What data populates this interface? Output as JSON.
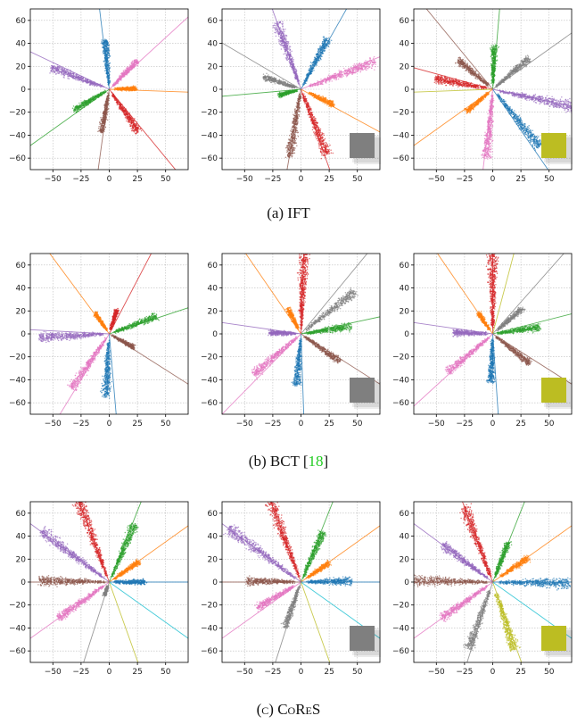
{
  "captions": {
    "a": "(a) IFT",
    "b_prefix": "(b) BCT [",
    "b_ref": "18",
    "b_suffix": "]",
    "c": "(c) CoReS"
  },
  "colors": {
    "blue": "#1f77b4",
    "orange": "#ff7f0e",
    "green": "#2ca02c",
    "red": "#d62728",
    "purple": "#9467bd",
    "brown": "#8c564b",
    "pink": "#e377c2",
    "gray": "#7f7f7f",
    "olive": "#bcbd22",
    "cyan": "#17becf"
  },
  "chart_data": [
    {
      "type": "scatter",
      "row": "a",
      "col": 1,
      "xlim": [
        -70,
        70
      ],
      "ylim": [
        -70,
        70
      ],
      "grid": true,
      "legend_square": null,
      "xticks": [
        -50,
        -25,
        0,
        25,
        50
      ],
      "yticks": [
        -60,
        -40,
        -20,
        0,
        20,
        40,
        60
      ],
      "lines": [
        {
          "c": "blue",
          "a": 97
        },
        {
          "c": "pink",
          "a": 42
        },
        {
          "c": "orange",
          "a": -2
        },
        {
          "c": "red",
          "a": -50
        },
        {
          "c": "brown",
          "a": -98
        },
        {
          "c": "green",
          "a": -145
        },
        {
          "c": "purple",
          "a": 155
        }
      ],
      "clusters": [
        {
          "c": "blue",
          "a": 95,
          "r0": 4,
          "r1": 43
        },
        {
          "c": "pink",
          "a": 45,
          "r0": 4,
          "r1": 35
        },
        {
          "c": "orange",
          "a": 2,
          "r0": 6,
          "r1": 24
        },
        {
          "c": "red",
          "a": -55,
          "r0": 4,
          "r1": 45
        },
        {
          "c": "brown",
          "a": -100,
          "r0": 4,
          "r1": 38
        },
        {
          "c": "green",
          "a": -150,
          "r0": 4,
          "r1": 36
        },
        {
          "c": "purple",
          "a": 160,
          "r0": 6,
          "r1": 55
        }
      ]
    },
    {
      "type": "scatter",
      "row": "a",
      "col": 2,
      "xlim": [
        -70,
        70
      ],
      "ylim": [
        -70,
        70
      ],
      "grid": true,
      "legend_square": "gray",
      "xticks": [
        -50,
        -25,
        0,
        25,
        50
      ],
      "yticks": [
        -60,
        -40,
        -20,
        0,
        20,
        40,
        60
      ],
      "lines": [
        {
          "c": "blue",
          "a": 60
        },
        {
          "c": "purple",
          "a": 110
        },
        {
          "c": "pink",
          "a": 22
        },
        {
          "c": "gray",
          "a": 150
        },
        {
          "c": "green",
          "a": -175
        },
        {
          "c": "orange",
          "a": -28
        },
        {
          "c": "red",
          "a": -70
        },
        {
          "c": "brown",
          "a": -100
        }
      ],
      "clusters": [
        {
          "c": "blue",
          "a": 62,
          "r0": 4,
          "r1": 50
        },
        {
          "c": "purple",
          "a": 110,
          "r0": 5,
          "r1": 62
        },
        {
          "c": "pink",
          "a": 20,
          "r0": 8,
          "r1": 70
        },
        {
          "c": "gray",
          "a": 162,
          "r0": 5,
          "r1": 35
        },
        {
          "c": "green",
          "a": -165,
          "r0": 4,
          "r1": 20
        },
        {
          "c": "orange",
          "a": -25,
          "r0": 8,
          "r1": 32
        },
        {
          "c": "red",
          "a": -68,
          "r0": 4,
          "r1": 62
        },
        {
          "c": "brown",
          "a": -100,
          "r0": 4,
          "r1": 60
        }
      ]
    },
    {
      "type": "scatter",
      "row": "a",
      "col": 3,
      "xlim": [
        -70,
        70
      ],
      "ylim": [
        -70,
        70
      ],
      "grid": true,
      "legend_square": "olive",
      "xticks": [
        -50,
        -25,
        0,
        25,
        50
      ],
      "yticks": [
        -60,
        -40,
        -20,
        0,
        20,
        40,
        60
      ],
      "lines": [
        {
          "c": "green",
          "a": 85
        },
        {
          "c": "gray",
          "a": 35
        },
        {
          "c": "brown",
          "a": 130
        },
        {
          "c": "red",
          "a": 165
        },
        {
          "c": "olive",
          "a": -178
        },
        {
          "c": "orange",
          "a": -145
        },
        {
          "c": "pink",
          "a": -97
        },
        {
          "c": "blue",
          "a": -55
        },
        {
          "c": "purple",
          "a": -12
        }
      ],
      "clusters": [
        {
          "c": "green",
          "a": 88,
          "r0": 4,
          "r1": 38
        },
        {
          "c": "gray",
          "a": 40,
          "r0": 4,
          "r1": 42
        },
        {
          "c": "brown",
          "a": 140,
          "r0": 5,
          "r1": 40
        },
        {
          "c": "red",
          "a": 170,
          "r0": 6,
          "r1": 52
        },
        {
          "c": "orange",
          "a": -140,
          "r0": 5,
          "r1": 30
        },
        {
          "c": "pink",
          "a": -95,
          "r0": 5,
          "r1": 60
        },
        {
          "c": "blue",
          "a": -50,
          "r0": 6,
          "r1": 65
        },
        {
          "c": "purple",
          "a": -12,
          "r0": 6,
          "r1": 75
        }
      ]
    },
    {
      "type": "scatter",
      "row": "b",
      "col": 1,
      "xlim": [
        -70,
        70
      ],
      "ylim": [
        -70,
        70
      ],
      "grid": true,
      "legend_square": null,
      "xticks": [
        -50,
        -25,
        0,
        25,
        50
      ],
      "yticks": [
        -60,
        -40,
        -20,
        0,
        20,
        40,
        60
      ],
      "lines": [
        {
          "c": "orange",
          "a": 127
        },
        {
          "c": "red",
          "a": 62
        },
        {
          "c": "green",
          "a": 18
        },
        {
          "c": "purple",
          "a": 177
        },
        {
          "c": "brown",
          "a": -32
        },
        {
          "c": "blue",
          "a": -85
        },
        {
          "c": "pink",
          "a": -122
        }
      ],
      "clusters": [
        {
          "c": "orange",
          "a": 125,
          "r0": 4,
          "r1": 22
        },
        {
          "c": "red",
          "a": 72,
          "r0": 4,
          "r1": 22
        },
        {
          "c": "green",
          "a": 20,
          "r0": 4,
          "r1": 45
        },
        {
          "c": "purple",
          "a": -177,
          "r0": 5,
          "r1": 62
        },
        {
          "c": "brown",
          "a": -28,
          "r0": 4,
          "r1": 25
        },
        {
          "c": "blue",
          "a": -93,
          "r0": 6,
          "r1": 55
        },
        {
          "c": "pink",
          "a": -125,
          "r0": 5,
          "r1": 58
        }
      ]
    },
    {
      "type": "scatter",
      "row": "b",
      "col": 2,
      "xlim": [
        -70,
        70
      ],
      "ylim": [
        -70,
        70
      ],
      "grid": true,
      "legend_square": "gray",
      "xticks": [
        -50,
        -25,
        0,
        25,
        50
      ],
      "yticks": [
        -60,
        -40,
        -20,
        0,
        20,
        40,
        60
      ],
      "lines": [
        {
          "c": "red",
          "a": 88
        },
        {
          "c": "gray",
          "a": 50
        },
        {
          "c": "orange",
          "a": 125
        },
        {
          "c": "green",
          "a": 12
        },
        {
          "c": "purple",
          "a": 172
        },
        {
          "c": "brown",
          "a": -32
        },
        {
          "c": "blue",
          "a": -88
        },
        {
          "c": "pink",
          "a": -135
        }
      ],
      "clusters": [
        {
          "c": "red",
          "a": 88,
          "r0": 5,
          "r1": 72
        },
        {
          "c": "gray",
          "a": 38,
          "r0": 5,
          "r1": 60
        },
        {
          "c": "orange",
          "a": 118,
          "r0": 5,
          "r1": 25
        },
        {
          "c": "green",
          "a": 8,
          "r0": 4,
          "r1": 45
        },
        {
          "c": "purple",
          "a": 178,
          "r0": 5,
          "r1": 28
        },
        {
          "c": "brown",
          "a": -35,
          "r0": 4,
          "r1": 42
        },
        {
          "c": "blue",
          "a": -95,
          "r0": 5,
          "r1": 45
        },
        {
          "c": "pink",
          "a": -140,
          "r0": 5,
          "r1": 55
        }
      ]
    },
    {
      "type": "scatter",
      "row": "b",
      "col": 3,
      "xlim": [
        -70,
        70
      ],
      "ylim": [
        -70,
        70
      ],
      "grid": true,
      "legend_square": "olive",
      "xticks": [
        -50,
        -25,
        0,
        25,
        50
      ],
      "yticks": [
        -60,
        -40,
        -20,
        0,
        20,
        40,
        60
      ],
      "lines": [
        {
          "c": "red",
          "a": 90
        },
        {
          "c": "olive",
          "a": 75
        },
        {
          "c": "gray",
          "a": 48
        },
        {
          "c": "orange",
          "a": 125
        },
        {
          "c": "green",
          "a": 14
        },
        {
          "c": "purple",
          "a": 172
        },
        {
          "c": "brown",
          "a": -32
        },
        {
          "c": "blue",
          "a": -86
        },
        {
          "c": "pink",
          "a": -138
        }
      ],
      "clusters": [
        {
          "c": "red",
          "a": 90,
          "r0": 5,
          "r1": 72
        },
        {
          "c": "gray",
          "a": 40,
          "r0": 5,
          "r1": 35
        },
        {
          "c": "orange",
          "a": 125,
          "r0": 5,
          "r1": 22
        },
        {
          "c": "green",
          "a": 8,
          "r0": 4,
          "r1": 42
        },
        {
          "c": "purple",
          "a": 178,
          "r0": 5,
          "r1": 35
        },
        {
          "c": "brown",
          "a": -38,
          "r0": 4,
          "r1": 42
        },
        {
          "c": "blue",
          "a": -92,
          "r0": 5,
          "r1": 42
        },
        {
          "c": "pink",
          "a": -140,
          "r0": 5,
          "r1": 52
        }
      ]
    },
    {
      "type": "scatter",
      "row": "c",
      "col": 1,
      "xlim": [
        -70,
        70
      ],
      "ylim": [
        -70,
        70
      ],
      "grid": true,
      "legend_square": null,
      "xticks": [
        -50,
        -25,
        0,
        25,
        50
      ],
      "yticks": [
        -60,
        -40,
        -20,
        0,
        20,
        40,
        60
      ],
      "lines": [
        {
          "c": "red",
          "a": 111
        },
        {
          "c": "green",
          "a": 68
        },
        {
          "c": "orange",
          "a": 35
        },
        {
          "c": "blue",
          "a": 0
        },
        {
          "c": "cyan",
          "a": -35
        },
        {
          "c": "olive",
          "a": -70
        },
        {
          "c": "gray",
          "a": -108
        },
        {
          "c": "pink",
          "a": -145
        },
        {
          "c": "brown",
          "a": 180
        },
        {
          "c": "purple",
          "a": 144
        }
      ],
      "clusters": [
        {
          "c": "red",
          "a": 111,
          "r0": 5,
          "r1": 75
        },
        {
          "c": "green",
          "a": 66,
          "r0": 5,
          "r1": 55
        },
        {
          "c": "orange",
          "a": 34,
          "r0": 5,
          "r1": 32
        },
        {
          "c": "blue",
          "a": 0,
          "r0": 4,
          "r1": 32
        },
        {
          "c": "gray",
          "a": -110,
          "r0": 4,
          "r1": 12
        },
        {
          "c": "pink",
          "a": -145,
          "r0": 6,
          "r1": 55
        },
        {
          "c": "brown",
          "a": 179,
          "r0": 5,
          "r1": 62
        },
        {
          "c": "purple",
          "a": 144,
          "r0": 6,
          "r1": 75
        }
      ]
    },
    {
      "type": "scatter",
      "row": "c",
      "col": 2,
      "xlim": [
        -70,
        70
      ],
      "ylim": [
        -70,
        70
      ],
      "grid": true,
      "legend_square": "gray",
      "xticks": [
        -50,
        -25,
        0,
        25,
        50
      ],
      "yticks": [
        -60,
        -40,
        -20,
        0,
        20,
        40,
        60
      ],
      "lines": [
        {
          "c": "red",
          "a": 111
        },
        {
          "c": "green",
          "a": 68
        },
        {
          "c": "orange",
          "a": 35
        },
        {
          "c": "blue",
          "a": 0
        },
        {
          "c": "cyan",
          "a": -35
        },
        {
          "c": "olive",
          "a": -70
        },
        {
          "c": "gray",
          "a": -108
        },
        {
          "c": "pink",
          "a": -145
        },
        {
          "c": "brown",
          "a": 180
        },
        {
          "c": "purple",
          "a": 144
        }
      ],
      "clusters": [
        {
          "c": "red",
          "a": 111,
          "r0": 5,
          "r1": 75
        },
        {
          "c": "green",
          "a": 66,
          "r0": 5,
          "r1": 48
        },
        {
          "c": "orange",
          "a": 34,
          "r0": 6,
          "r1": 30
        },
        {
          "c": "blue",
          "a": 1,
          "r0": 5,
          "r1": 45
        },
        {
          "c": "gray",
          "a": -110,
          "r0": 4,
          "r1": 42
        },
        {
          "c": "pink",
          "a": -150,
          "r0": 8,
          "r1": 45
        },
        {
          "c": "brown",
          "a": 179,
          "r0": 6,
          "r1": 48
        },
        {
          "c": "purple",
          "a": 144,
          "r0": 6,
          "r1": 80
        }
      ]
    },
    {
      "type": "scatter",
      "row": "c",
      "col": 3,
      "xlim": [
        -70,
        70
      ],
      "ylim": [
        -70,
        70
      ],
      "grid": true,
      "legend_square": "olive",
      "xticks": [
        -50,
        -25,
        0,
        25,
        50
      ],
      "yticks": [
        -60,
        -40,
        -20,
        0,
        20,
        40,
        60
      ],
      "lines": [
        {
          "c": "red",
          "a": 111
        },
        {
          "c": "green",
          "a": 68
        },
        {
          "c": "orange",
          "a": 35
        },
        {
          "c": "blue",
          "a": 0
        },
        {
          "c": "cyan",
          "a": -35
        },
        {
          "c": "olive",
          "a": -70
        },
        {
          "c": "gray",
          "a": -108
        },
        {
          "c": "pink",
          "a": -145
        },
        {
          "c": "brown",
          "a": 180
        },
        {
          "c": "purple",
          "a": 144
        }
      ],
      "clusters": [
        {
          "c": "red",
          "a": 111,
          "r0": 5,
          "r1": 70
        },
        {
          "c": "green",
          "a": 68,
          "r0": 5,
          "r1": 38
        },
        {
          "c": "orange",
          "a": 34,
          "r0": 8,
          "r1": 38
        },
        {
          "c": "blue",
          "a": -1,
          "r0": 6,
          "r1": 68
        },
        {
          "c": "olive",
          "a": -72,
          "r0": 10,
          "r1": 62
        },
        {
          "c": "gray",
          "a": -110,
          "r0": 8,
          "r1": 62
        },
        {
          "c": "pink",
          "a": -145,
          "r0": 6,
          "r1": 55
        },
        {
          "c": "brown",
          "a": 179,
          "r0": 5,
          "r1": 75
        },
        {
          "c": "purple",
          "a": 144,
          "r0": 6,
          "r1": 55
        }
      ]
    }
  ]
}
